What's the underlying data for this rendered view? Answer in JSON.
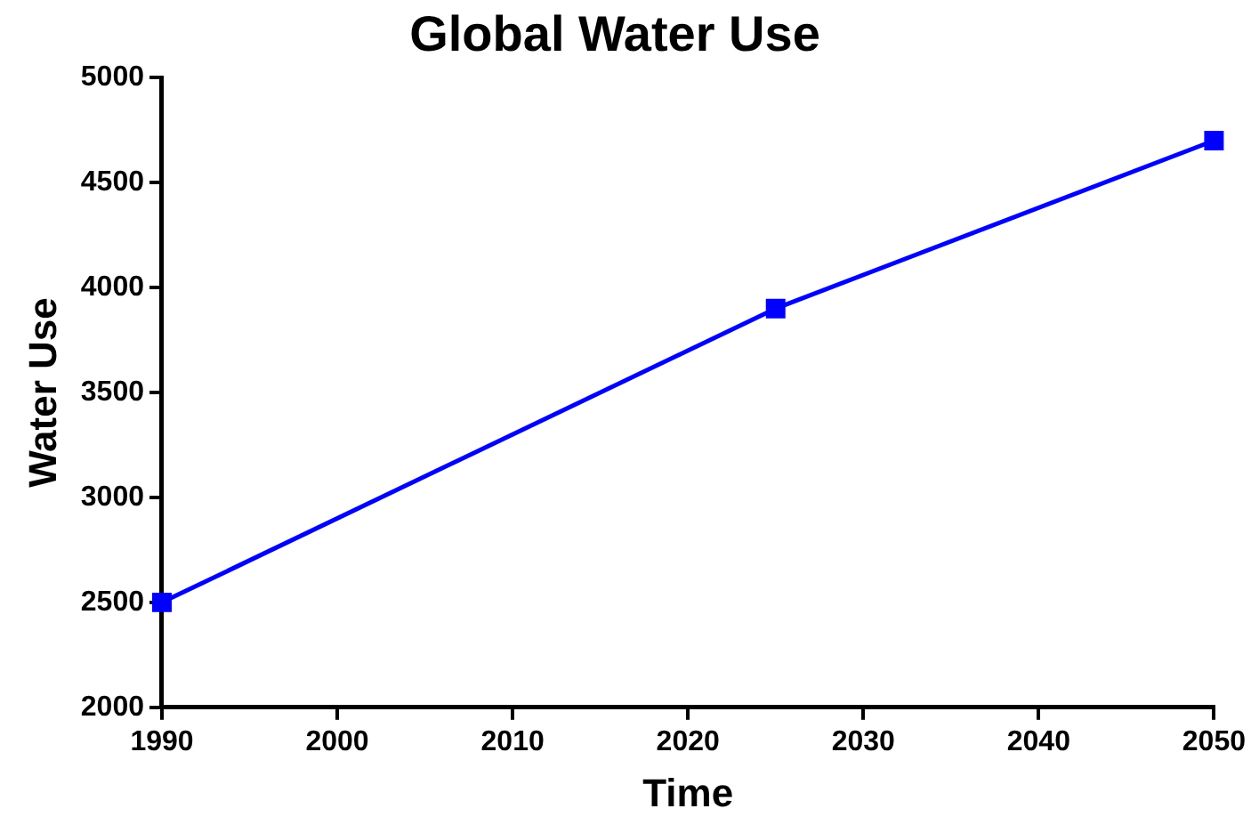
{
  "chart_data": {
    "type": "line",
    "title": "Global Water Use",
    "xlabel": "Time",
    "ylabel": "Water Use",
    "x": [
      1990,
      2025,
      2050
    ],
    "series": [
      {
        "color": "#0000ff",
        "values": [
          2500,
          3900,
          4700
        ]
      }
    ],
    "xlim": [
      1990,
      2050
    ],
    "xticks": [
      1990,
      2000,
      2010,
      2020,
      2030,
      2040,
      2050
    ],
    "ylim": [
      2000,
      5000
    ],
    "yticks": [
      2000,
      2500,
      3000,
      3500,
      4000,
      4500,
      5000
    ],
    "grid": false,
    "legend": false,
    "marker": "square",
    "line_style": "solid"
  }
}
